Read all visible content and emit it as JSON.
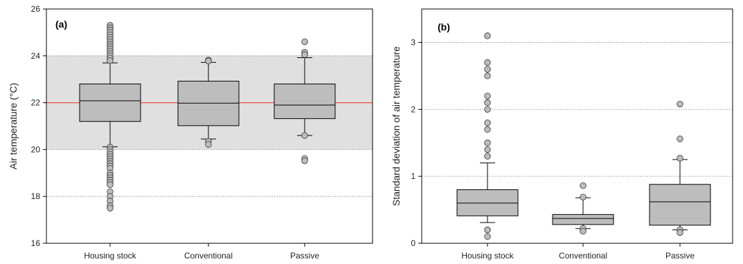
{
  "chart_data": [
    {
      "type": "box",
      "panel_label": "(a)",
      "ylabel": "Air temperature (°C)",
      "ylim": [
        16,
        26
      ],
      "yticks": [
        "16",
        "18",
        "20",
        "22",
        "24",
        "26"
      ],
      "gridlines_y": [
        18,
        20,
        22,
        24
      ],
      "comfort_band": [
        20,
        24
      ],
      "reference_line": 22,
      "categories": [
        "Housing stock",
        "Conventional",
        "Passive"
      ],
      "boxes": [
        {
          "q1": 21.2,
          "median": 22.08,
          "q3": 22.8,
          "whisker_low": 20.12,
          "whisker_high": 23.7,
          "outliers": [
            25.3,
            25.2,
            25.1,
            25.0,
            24.9,
            24.8,
            24.7,
            24.6,
            24.5,
            24.4,
            24.3,
            24.2,
            24.1,
            24.0,
            23.9,
            23.8,
            20.1,
            20.0,
            19.9,
            19.8,
            19.7,
            19.6,
            19.5,
            19.4,
            19.3,
            19.2,
            19.0,
            18.9,
            18.8,
            18.7,
            18.6,
            18.5,
            18.2,
            18.0,
            17.8,
            17.6,
            17.5
          ]
        },
        {
          "q1": 21.02,
          "median": 21.98,
          "q3": 22.92,
          "whisker_low": 20.45,
          "whisker_high": 23.72,
          "outliers": [
            23.82,
            23.78,
            20.35,
            20.22
          ]
        },
        {
          "q1": 21.32,
          "median": 21.9,
          "q3": 22.8,
          "whisker_low": 20.6,
          "whisker_high": 23.92,
          "outliers": [
            24.6,
            24.15,
            24.05,
            20.6,
            19.62,
            19.52
          ]
        }
      ]
    },
    {
      "type": "box",
      "panel_label": "(b)",
      "ylabel": "Standard deviation of air temperature",
      "ylim": [
        0,
        3.5
      ],
      "yticks": [
        "0",
        "1",
        "2",
        "3"
      ],
      "gridlines_y": [
        1,
        2,
        3
      ],
      "categories": [
        "Housing stock",
        "Conventional",
        "Passive"
      ],
      "boxes": [
        {
          "q1": 0.41,
          "median": 0.6,
          "q3": 0.8,
          "whisker_low": 0.31,
          "whisker_high": 1.2,
          "outliers": [
            3.1,
            2.7,
            2.6,
            2.5,
            2.2,
            2.1,
            2.0,
            1.8,
            1.7,
            1.5,
            1.4,
            1.3,
            0.2,
            0.1
          ]
        },
        {
          "q1": 0.28,
          "median": 0.37,
          "q3": 0.43,
          "whisker_low": 0.22,
          "whisker_high": 0.68,
          "outliers": [
            0.86,
            0.69,
            0.22,
            0.18
          ]
        },
        {
          "q1": 0.27,
          "median": 0.62,
          "q3": 0.88,
          "whisker_low": 0.2,
          "whisker_high": 1.25,
          "outliers": [
            2.08,
            1.56,
            1.27,
            0.2,
            0.16
          ]
        }
      ]
    }
  ]
}
